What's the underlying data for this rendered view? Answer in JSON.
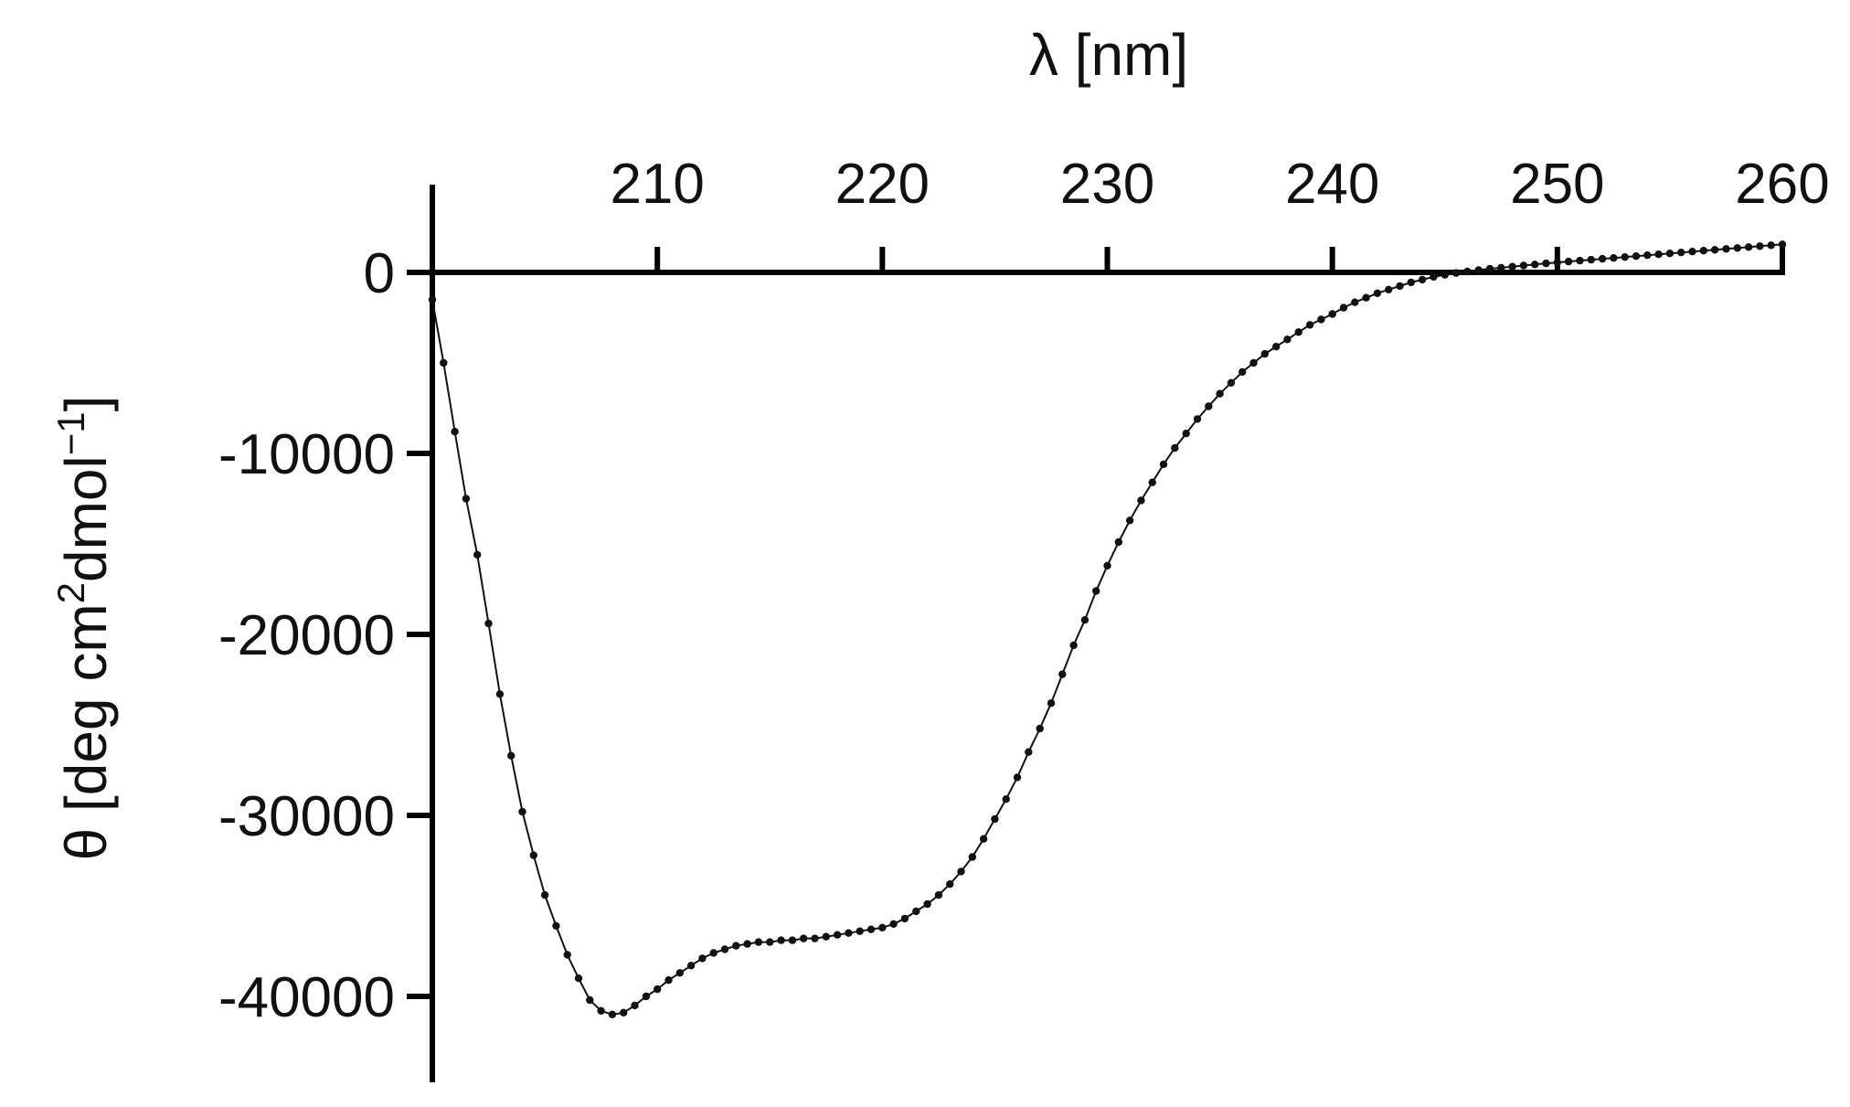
{
  "chart_data": {
    "type": "line",
    "title": "",
    "xlabel": "λ [nm]",
    "ylabel_parts": [
      "θ [deg cm",
      "2",
      "dmol",
      "−1",
      "]"
    ],
    "x_axis_position": "top",
    "xlim": [
      200,
      260
    ],
    "ylim": [
      -45000,
      3000
    ],
    "x_ticks": [
      210,
      220,
      230,
      240,
      250,
      260
    ],
    "x_tick_labels": [
      "210",
      "220",
      "230",
      "240",
      "250",
      "260"
    ],
    "y_ticks": [
      0,
      -10000,
      -20000,
      -30000,
      -40000
    ],
    "y_tick_labels": [
      "0",
      "-10000",
      "-20000",
      "-30000",
      "-40000"
    ],
    "grid": false,
    "legend": "none",
    "marker_color": "#111111",
    "series": [
      {
        "x": [
          200,
          200.5,
          201,
          201.5,
          202,
          202.5,
          203,
          203.5,
          204,
          204.5,
          205,
          205.5,
          206,
          206.5,
          207,
          207.5,
          208,
          208.5,
          209,
          209.5,
          210,
          210.5,
          211,
          211.5,
          212,
          212.5,
          213,
          213.5,
          214,
          214.5,
          215,
          215.5,
          216,
          216.5,
          217,
          217.5,
          218,
          218.5,
          219,
          219.5,
          220,
          220.5,
          221,
          221.5,
          222,
          222.5,
          223,
          223.5,
          224,
          224.5,
          225,
          225.5,
          226,
          226.5,
          227,
          227.5,
          228,
          228.5,
          229,
          229.5,
          230,
          230.5,
          231,
          231.5,
          232,
          232.5,
          233,
          233.5,
          234,
          234.5,
          235,
          235.5,
          236,
          236.5,
          237,
          237.5,
          238,
          238.5,
          239,
          239.5,
          240,
          240.5,
          241,
          241.5,
          242,
          242.5,
          243,
          243.5,
          244,
          244.5,
          245,
          245.5,
          246,
          246.5,
          247,
          247.5,
          248,
          248.5,
          249,
          249.5,
          250,
          250.5,
          251,
          251.5,
          252,
          252.5,
          253,
          253.5,
          254,
          254.5,
          255,
          255.5,
          256,
          256.5,
          257,
          257.5,
          258,
          258.5,
          259,
          259.5,
          260
        ],
        "y": [
          -1500,
          -5000,
          -8800,
          -12500,
          -15600,
          -19400,
          -23300,
          -26700,
          -29800,
          -32200,
          -34400,
          -36100,
          -37700,
          -39000,
          -40200,
          -40800,
          -41000,
          -40900,
          -40500,
          -40000,
          -39600,
          -39100,
          -38700,
          -38300,
          -37900,
          -37600,
          -37400,
          -37200,
          -37100,
          -37000,
          -37000,
          -36900,
          -36900,
          -36800,
          -36800,
          -36700,
          -36600,
          -36500,
          -36400,
          -36300,
          -36200,
          -36000,
          -35700,
          -35300,
          -34900,
          -34400,
          -33800,
          -33100,
          -32300,
          -31300,
          -30200,
          -29100,
          -27900,
          -26500,
          -25200,
          -23800,
          -22200,
          -20600,
          -19200,
          -17600,
          -16200,
          -14900,
          -13700,
          -12600,
          -11600,
          -10600,
          -9700,
          -8900,
          -8100,
          -7400,
          -6700,
          -6100,
          -5500,
          -5000,
          -4500,
          -4100,
          -3700,
          -3300,
          -2900,
          -2600,
          -2300,
          -1950,
          -1650,
          -1400,
          -1150,
          -950,
          -750,
          -550,
          -400,
          -250,
          -130,
          -30,
          50,
          130,
          200,
          260,
          320,
          380,
          440,
          500,
          550,
          600,
          650,
          700,
          750,
          800,
          850,
          900,
          950,
          1000,
          1050,
          1100,
          1150,
          1200,
          1250,
          1300,
          1350,
          1400,
          1450,
          1500,
          1550
        ]
      }
    ]
  }
}
